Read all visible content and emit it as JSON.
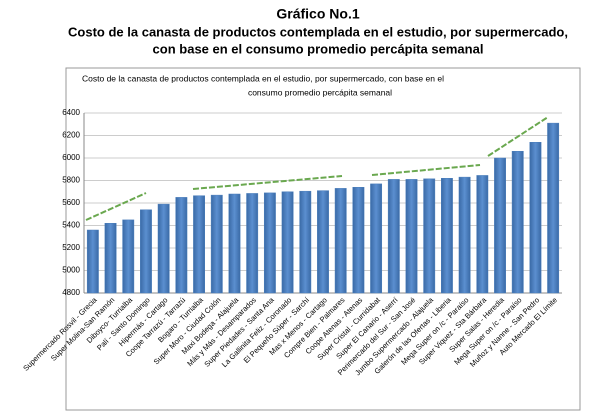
{
  "header": {
    "title": "Gráfico No.1",
    "subtitle_lines": [
      "Costo de la canasta de productos contemplada en el estudio, por supermercado,",
      "con base en el consumo promedio percápita semanal"
    ]
  },
  "chart_data": {
    "type": "bar",
    "title_lines": [
      "Costo de la canasta de productos contemplada en el estudio, por supermercado, con base en el",
      "consumo promedio percápita semanal"
    ],
    "categories": [
      "Supermercado Rosvil - Grecia",
      "Super Molina-San Ramón",
      "Diboyco- Turrialba",
      "Palí - Santo Domingo",
      "Hipermás - Cartago",
      "Coope Tarrazú - Tarrazú",
      "Bogaro - Turrialba",
      "Super Moro - Ciudad Colón",
      "Maxi Bodega - Alajuela",
      "Más y Más - Desamparados",
      "Super Piedades - Santa Ana",
      "La Gallinita Feliz - Coronado",
      "El Pequeño Súper - Sarchí",
      "Mas x Menos - Cartago",
      "Compre Bien - Palmares",
      "Coope Atenas - Atenas",
      "Super Cristal - Curridabat",
      "Super El Canario - Aserrí",
      "Perimercado del Sur - San José",
      "Jumbo Supermercado - Alajuela",
      "Galerón de las Ofertas - Liberia",
      "Mega Super on /c - Paraíso",
      "Super Viquez - Sta Bárbara",
      "Super Salas - Heredia",
      "Mega Super on /c - Paraíso",
      "Muñoz y Nanne - San Pedro",
      "Auto Mercado El Límite"
    ],
    "values": [
      5360,
      5420,
      5450,
      5540,
      5590,
      5650,
      5665,
      5670,
      5680,
      5685,
      5690,
      5700,
      5705,
      5710,
      5730,
      5740,
      5770,
      5810,
      5810,
      5815,
      5820,
      5830,
      5845,
      6000,
      6060,
      6140,
      6310
    ],
    "color": "#4a7ebb",
    "ylim": [
      4800,
      6400
    ],
    "yticks": [
      4800,
      5000,
      5200,
      5400,
      5600,
      5800,
      6000,
      6200,
      6400
    ],
    "grid": true
  }
}
